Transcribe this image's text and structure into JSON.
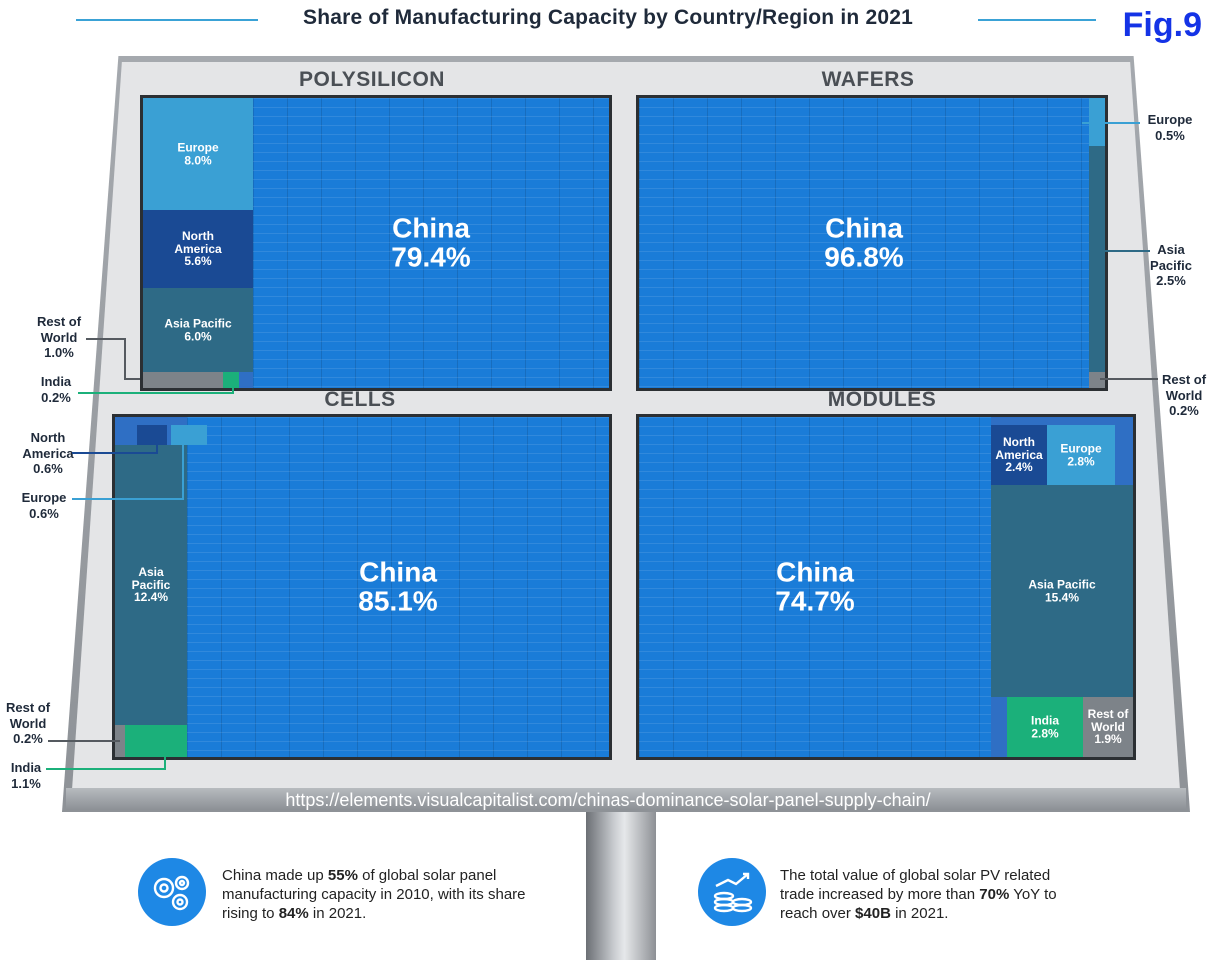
{
  "header": {
    "title": "Share of Manufacturing Capacity by Country/Region in 2021",
    "fig_label": "Fig.9"
  },
  "colors": {
    "china": "#1a7cd8",
    "europe": "#3aa0d4",
    "north_america": "#1a4a94",
    "asia_pacific": "#2e6a86",
    "india": "#1bb07a",
    "rest_of_world": "#7d8389",
    "accent_rule": "#3aa2d6",
    "fig_label": "#1433e6"
  },
  "chart_data": [
    {
      "type": "treemap",
      "panel": "POLYSILICON",
      "segments": [
        {
          "name": "China",
          "value": 79.4
        },
        {
          "name": "Europe",
          "value": 8.0
        },
        {
          "name": "North America",
          "value": 5.6
        },
        {
          "name": "Asia Pacific",
          "value": 6.0
        },
        {
          "name": "Rest of World",
          "value": 1.0
        },
        {
          "name": "India",
          "value": 0.2
        }
      ],
      "labels": {
        "china": [
          "China",
          "79.4%"
        ],
        "europe": [
          "Europe",
          "8.0%"
        ],
        "north_america": [
          "North",
          "America",
          "5.6%"
        ],
        "asia_pacific": [
          "Asia Pacific",
          "6.0%"
        ],
        "rest_of_world": [
          "Rest of",
          "World",
          "1.0%"
        ],
        "india": [
          "India",
          "0.2%"
        ]
      }
    },
    {
      "type": "treemap",
      "panel": "WAFERS",
      "segments": [
        {
          "name": "China",
          "value": 96.8
        },
        {
          "name": "Europe",
          "value": 0.5
        },
        {
          "name": "Asia Pacific",
          "value": 2.5
        },
        {
          "name": "Rest of World",
          "value": 0.2
        }
      ],
      "labels": {
        "china": [
          "China",
          "96.8%"
        ],
        "europe": [
          "Europe",
          "0.5%"
        ],
        "asia_pacific": [
          "Asia",
          "Pacific",
          "2.5%"
        ],
        "rest_of_world": [
          "Rest of",
          "World",
          "0.2%"
        ]
      }
    },
    {
      "type": "treemap",
      "panel": "CELLS",
      "segments": [
        {
          "name": "China",
          "value": 85.1
        },
        {
          "name": "North America",
          "value": 0.6
        },
        {
          "name": "Europe",
          "value": 0.6
        },
        {
          "name": "Asia Pacific",
          "value": 12.4
        },
        {
          "name": "Rest of World",
          "value": 0.2
        },
        {
          "name": "India",
          "value": 1.1
        }
      ],
      "labels": {
        "china": [
          "China",
          "85.1%"
        ],
        "north_america": [
          "North",
          "America",
          "0.6%"
        ],
        "europe": [
          "Europe",
          "0.6%"
        ],
        "asia_pacific": [
          "Asia",
          "Pacific",
          "12.4%"
        ],
        "rest_of_world": [
          "Rest of",
          "World",
          "0.2%"
        ],
        "india": [
          "India",
          "1.1%"
        ]
      }
    },
    {
      "type": "treemap",
      "panel": "MODULES",
      "segments": [
        {
          "name": "China",
          "value": 74.7
        },
        {
          "name": "North America",
          "value": 2.4
        },
        {
          "name": "Europe",
          "value": 2.8
        },
        {
          "name": "Asia Pacific",
          "value": 15.4
        },
        {
          "name": "India",
          "value": 2.8
        },
        {
          "name": "Rest of World",
          "value": 1.9
        }
      ],
      "labels": {
        "china": [
          "China",
          "74.7%"
        ],
        "north_america": [
          "North",
          "America",
          "2.4%"
        ],
        "europe": [
          "Europe",
          "2.8%"
        ],
        "asia_pacific": [
          "Asia Pacific",
          "15.4%"
        ],
        "india": [
          "India",
          "2.8%"
        ],
        "rest_of_world": [
          "Rest of",
          "World",
          "1.9%"
        ]
      }
    }
  ],
  "source_url": "https://elements.visualcapitalist.com/chinas-dominance-solar-panel-supply-chain/",
  "notes": [
    {
      "icon": "gears-icon",
      "pre": "China made up ",
      "b1": "55%",
      "mid": " of global solar panel manufacturing capacity in 2010, with its share rising to ",
      "b2": "84%",
      "post": " in 2021."
    },
    {
      "icon": "money-growth-icon",
      "pre": "The total value of global solar PV related trade increased by more than ",
      "b1": "70%",
      "mid": " YoY to reach over ",
      "b2": "$40B",
      "post": " in 2021."
    }
  ]
}
